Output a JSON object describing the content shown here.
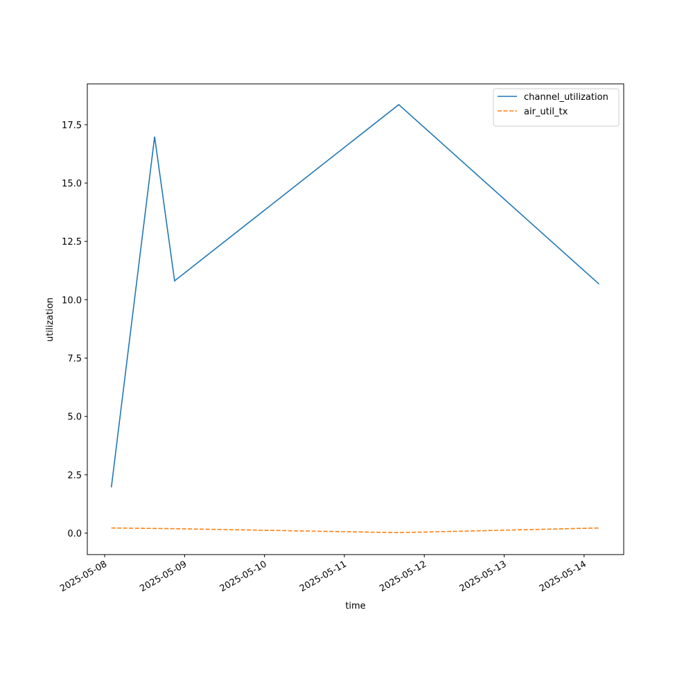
{
  "chart_data": {
    "type": "line",
    "x": [
      "2025-05-08T02:00",
      "2025-05-08T15:00",
      "2025-05-08T21:00",
      "2025-05-11T16:20",
      "2025-05-14T04:30"
    ],
    "series": [
      {
        "name": "channel_utilization",
        "color": "#1f77b4",
        "dash": "solid",
        "values": [
          1.96,
          16.99,
          10.81,
          18.36,
          10.67
        ]
      },
      {
        "name": "air_util_tx",
        "color": "#ff7f0e",
        "dash": "dashed",
        "values": [
          0.22,
          0.2,
          0.19,
          0.02,
          0.22
        ]
      }
    ],
    "xlabel": "time",
    "ylabel": "utilization",
    "xlim": [
      "2025-05-07T18:47",
      "2025-05-14T11:54"
    ],
    "xticks": [
      "2025-05-08",
      "2025-05-09",
      "2025-05-10",
      "2025-05-11",
      "2025-05-12",
      "2025-05-13",
      "2025-05-14"
    ],
    "ylim": [
      -0.92,
      19.25
    ],
    "yticks": [
      {
        "value": 0,
        "label": "0.0"
      },
      2.5,
      {
        "value": 5,
        "label": "5.0"
      },
      7.5,
      {
        "value": 10,
        "label": "10.0"
      },
      12.5,
      {
        "value": 15,
        "label": "15.0"
      },
      17.5
    ],
    "legend": "upper right",
    "grid": false
  }
}
